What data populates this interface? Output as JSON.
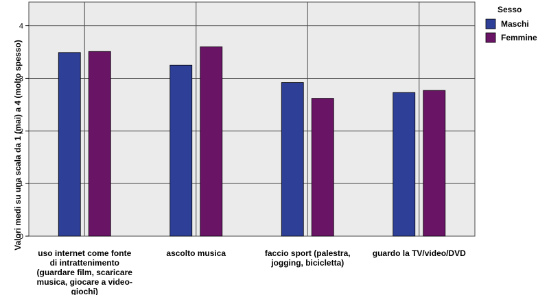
{
  "chart_data": {
    "type": "bar",
    "categories": [
      [
        "uso internet come fonte",
        "di intrattenimento",
        "(guardare film, scaricare",
        "musica, giocare a video-",
        "giochi)"
      ],
      [
        "ascolto musica"
      ],
      [
        "faccio sport (palestra,",
        "jogging, bicicletta)"
      ],
      [
        "guardo la TV/video/DVD"
      ]
    ],
    "series": [
      {
        "name": "Maschi",
        "values": [
          3.49,
          3.25,
          2.92,
          2.73
        ]
      },
      {
        "name": "Femmine",
        "values": [
          3.51,
          3.6,
          2.62,
          2.77
        ]
      }
    ],
    "ylabel": "Valori medi su una scala da 1 (mai) a 4 (molto spesso)",
    "ylim": [
      0,
      4.45
    ],
    "yticks": [
      0,
      1,
      2,
      3,
      4
    ],
    "grid": true,
    "legend_title": "Sesso",
    "legend_position": "top-right"
  },
  "colors": {
    "maschi": "#2e3f98",
    "femmine": "#6a1466",
    "plot_background": "#ebebeb",
    "grid": "#4a4a4a"
  }
}
